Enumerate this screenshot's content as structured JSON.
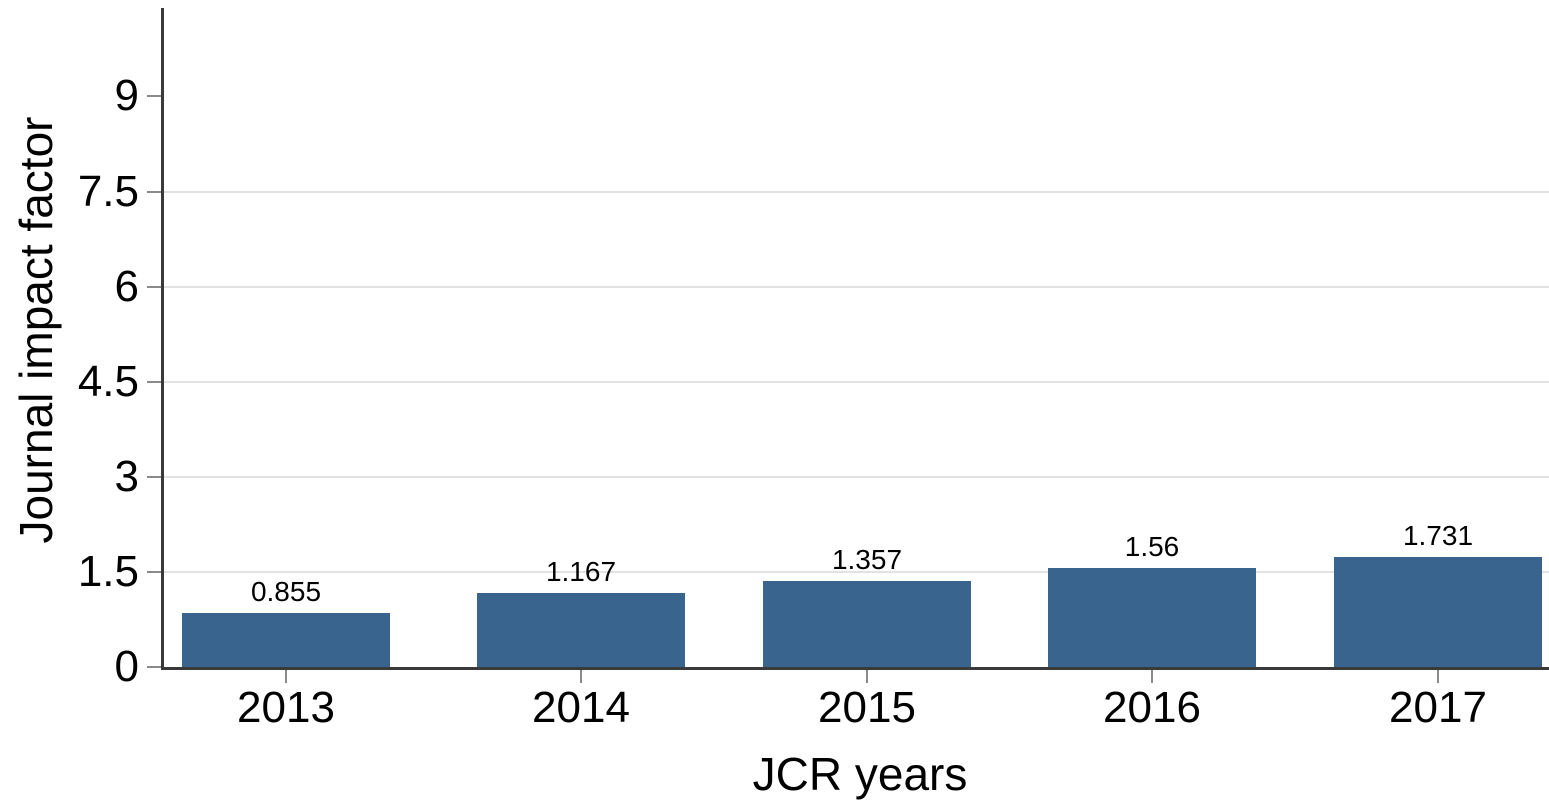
{
  "chart_data": {
    "type": "bar",
    "title": "",
    "categories": [
      "2013",
      "2014",
      "2015",
      "2016",
      "2017"
    ],
    "values": [
      0.855,
      1.167,
      1.357,
      1.56,
      1.731
    ],
    "value_labels": [
      "0.855",
      "1.167",
      "1.357",
      "1.56",
      "1.731"
    ],
    "xlabel": "JCR years",
    "ylabel": "Journal impact factor",
    "yticks": [
      0,
      1.5,
      3,
      4.5,
      6,
      7.5,
      9
    ],
    "ytick_labels": [
      "0",
      "1.5",
      "3",
      "4.5",
      "6",
      "7.5",
      "9"
    ],
    "gridline_ticks": [
      1.5,
      3,
      4.5,
      6,
      7.5
    ],
    "ylim": [
      0,
      10.4
    ],
    "grid": "horizontal-light-gray, no gridline at 9 or 0",
    "legend": "none",
    "colors": {
      "bar": "#38648e",
      "axis": "#3a3a3a",
      "gridline": "#e2e2e2",
      "tick": "#8a8a8a",
      "text": "#000000",
      "background": "#ffffff"
    }
  }
}
